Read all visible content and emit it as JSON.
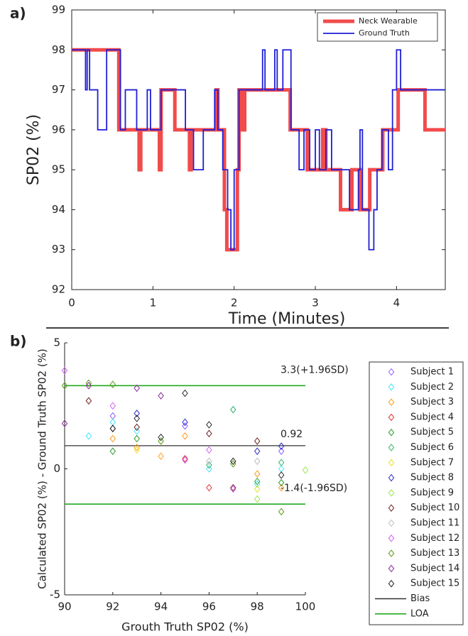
{
  "chart_data": [
    {
      "type": "step",
      "panel_label": "a)",
      "x_label": "Time (Minutes)",
      "y_label": "SP02 (%)",
      "xlim": [
        0,
        4.6
      ],
      "ylim": [
        92,
        99
      ],
      "xticks": [
        0,
        1,
        2,
        3,
        4
      ],
      "yticks": [
        92,
        93,
        94,
        95,
        96,
        97,
        98,
        99
      ],
      "legend_position": "upper right",
      "grid": false,
      "series": [
        {
          "name": "Neck Wearable",
          "color": "#f24b4b",
          "width": 5,
          "x": [
            0,
            0.58,
            0.83,
            0.85,
            1.08,
            1.1,
            1.27,
            1.45,
            1.47,
            1.78,
            1.8,
            1.88,
            1.91,
            2.04,
            2.06,
            2.1,
            2.13,
            2.69,
            2.9,
            3.09,
            3.13,
            3.31,
            3.45,
            3.55,
            3.67,
            3.83,
            4.02,
            4.35,
            4.6
          ],
          "values": [
            98,
            96,
            95,
            96,
            95,
            97,
            96,
            95,
            96,
            97,
            96,
            94,
            93,
            95,
            97,
            96,
            97,
            96,
            95,
            96,
            95,
            94,
            95,
            94,
            95,
            96,
            97,
            96,
            96
          ]
        },
        {
          "name": "Ground Truth",
          "color": "#1f1fd6",
          "width": 1.8,
          "x": [
            0,
            0.17,
            0.19,
            0.22,
            0.32,
            0.43,
            0.6,
            0.66,
            0.8,
            0.93,
            0.97,
            1.1,
            1.4,
            1.5,
            1.62,
            1.76,
            1.8,
            1.86,
            1.92,
            1.96,
            2.0,
            2.06,
            2.35,
            2.38,
            2.5,
            2.53,
            2.6,
            2.7,
            2.8,
            2.86,
            2.93,
            3.0,
            3.05,
            3.13,
            3.2,
            3.42,
            3.53,
            3.55,
            3.58,
            3.66,
            3.72,
            3.76,
            3.82,
            3.9,
            3.95,
            4.0,
            4.05,
            4.6
          ],
          "values": [
            98,
            97,
            98,
            97,
            96,
            98,
            96,
            97,
            96,
            97,
            96,
            97,
            96,
            95,
            96,
            97,
            96,
            95,
            94,
            93,
            95,
            97,
            98,
            97,
            98,
            97,
            98,
            96,
            95,
            96,
            95,
            96,
            95,
            96,
            95,
            94,
            95,
            96,
            94,
            93,
            94,
            95,
            96,
            95,
            97,
            98,
            97,
            97
          ]
        }
      ]
    },
    {
      "type": "scatter",
      "panel_label": "b)",
      "x_label": "Grouth Truth SP02 (%)",
      "y_label": "Calculated SP02 (%) - Ground Truth SP02 (%)",
      "xlim": [
        90,
        100
      ],
      "ylim": [
        -5,
        5
      ],
      "xticks": [
        90,
        92,
        94,
        96,
        98,
        100
      ],
      "yticks": [
        -5,
        0,
        5
      ],
      "legend_position": "right",
      "series": [
        {
          "name": "Subject 1",
          "color": "#8a5cff",
          "x": [
            92,
            95,
            99
          ],
          "values": [
            2.1,
            1.7,
            0.7
          ]
        },
        {
          "name": "Subject 2",
          "color": "#3fe6ff",
          "x": [
            91,
            92,
            93,
            96,
            98,
            99
          ],
          "values": [
            1.3,
            1.85,
            1.5,
            0,
            -0.6,
            0
          ]
        },
        {
          "name": "Subject 3",
          "color": "#ff9b1a",
          "x": [
            92,
            93,
            94,
            95,
            98,
            99
          ],
          "values": [
            1.2,
            0.85,
            0.5,
            1.3,
            -0.2,
            -0.75
          ]
        },
        {
          "name": "Subject 4",
          "color": "#e83030",
          "x": [
            95,
            96
          ],
          "values": [
            0.4,
            -0.75
          ]
        },
        {
          "name": "Subject 5",
          "color": "#2f9a2f",
          "x": [
            92,
            93,
            98,
            99
          ],
          "values": [
            0.7,
            1.2,
            -0.5,
            -0.55
          ]
        },
        {
          "name": "Subject 6",
          "color": "#2fb06a",
          "x": [
            96,
            97,
            99
          ],
          "values": [
            0.15,
            2.35,
            0.25
          ]
        },
        {
          "name": "Subject 7",
          "color": "#e8e020",
          "x": [
            93,
            98
          ],
          "values": [
            0.75,
            -0.8
          ]
        },
        {
          "name": "Subject 8",
          "color": "#2c2cc8",
          "x": [
            93,
            95,
            98,
            99
          ],
          "values": [
            2.2,
            1.85,
            0.7,
            0.9
          ]
        },
        {
          "name": "Subject 9",
          "color": "#9ae84a",
          "x": [
            98,
            100
          ],
          "values": [
            -1.2,
            -0.05
          ]
        },
        {
          "name": "Subject 10",
          "color": "#6e2222",
          "x": [
            91,
            93,
            96,
            97,
            98
          ],
          "values": [
            2.7,
            1.65,
            1.4,
            -0.75,
            1.1
          ]
        },
        {
          "name": "Subject 11",
          "color": "#bdbdbd",
          "x": [
            96,
            98
          ],
          "values": [
            0.3,
            0.3
          ]
        },
        {
          "name": "Subject 12",
          "color": "#d45cf5",
          "x": [
            90,
            92,
            95,
            96,
            97
          ],
          "values": [
            3.9,
            2.5,
            0.35,
            0.75,
            -0.8
          ]
        },
        {
          "name": "Subject 13",
          "color": "#5a9a14",
          "x": [
            90,
            91,
            92,
            94,
            97,
            99
          ],
          "values": [
            3.3,
            3.4,
            3.35,
            1.1,
            0.2,
            -1.7
          ]
        },
        {
          "name": "Subject 14",
          "color": "#8a2a9a",
          "x": [
            90,
            91,
            92,
            93,
            94
          ],
          "values": [
            1.8,
            3.3,
            1.6,
            3.2,
            2.9
          ]
        },
        {
          "name": "Subject 15",
          "color": "#222222",
          "x": [
            92,
            93,
            94,
            95,
            96,
            97,
            99
          ],
          "values": [
            1.6,
            2.0,
            1.25,
            3.0,
            1.75,
            0.3,
            -0.25
          ]
        }
      ],
      "bias": {
        "name": "Bias",
        "color": "#333333",
        "value": 0.92
      },
      "loa": {
        "name": "LOA",
        "color": "#22aa22",
        "values": [
          3.3,
          -1.4
        ],
        "labels": [
          "3.3(+1.96SD)",
          "-1.4(-1.96SD)"
        ]
      }
    }
  ]
}
